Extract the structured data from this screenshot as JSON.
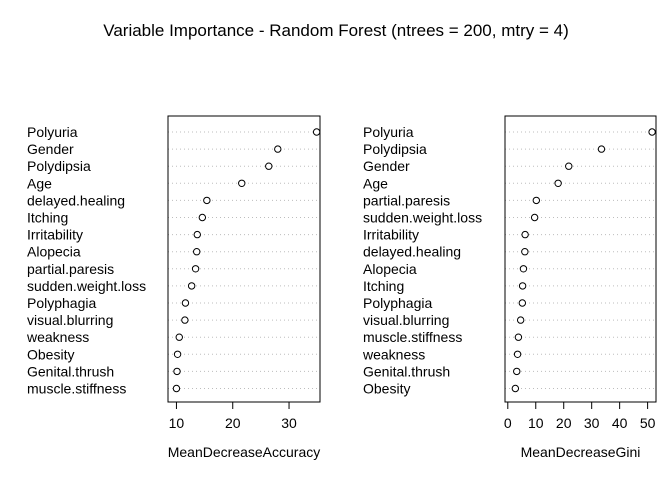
{
  "title": "Variable Importance - Random Forest (ntrees = 200, mtry = 4)",
  "chart_data": [
    {
      "type": "scatter",
      "style": "dotchart",
      "xlabel": "MeanDecreaseAccuracy",
      "xlim": [
        8.5,
        35.5
      ],
      "xticks": [
        10,
        20,
        30
      ],
      "grid": "dotted horizontal",
      "categories": [
        "Polyuria",
        "Gender",
        "Polydipsia",
        "Age",
        "delayed.healing",
        "Itching",
        "Irritability",
        "Alopecia",
        "partial.paresis",
        "sudden.weight.loss",
        "Polyphagia",
        "visual.blurring",
        "weakness",
        "Obesity",
        "Genital.thrush",
        "muscle.stiffness"
      ],
      "values": [
        34.9,
        28.0,
        26.4,
        21.6,
        15.4,
        14.6,
        13.7,
        13.6,
        13.4,
        12.7,
        11.6,
        11.5,
        10.5,
        10.2,
        10.1,
        10.0
      ]
    },
    {
      "type": "scatter",
      "style": "dotchart",
      "xlabel": "MeanDecreaseGini",
      "xlim": [
        -1,
        53
      ],
      "xticks": [
        0,
        10,
        20,
        30,
        40,
        50
      ],
      "grid": "dotted horizontal",
      "categories": [
        "Polyuria",
        "Polydipsia",
        "Gender",
        "Age",
        "partial.paresis",
        "sudden.weight.loss",
        "Irritability",
        "delayed.healing",
        "Alopecia",
        "Itching",
        "Polyphagia",
        "visual.blurring",
        "muscle.stiffness",
        "weakness",
        "Genital.thrush",
        "Obesity"
      ],
      "values": [
        51.6,
        33.5,
        21.8,
        18.0,
        10.2,
        9.6,
        6.2,
        6.1,
        5.6,
        5.3,
        5.2,
        4.6,
        3.8,
        3.5,
        3.2,
        2.7
      ]
    }
  ]
}
